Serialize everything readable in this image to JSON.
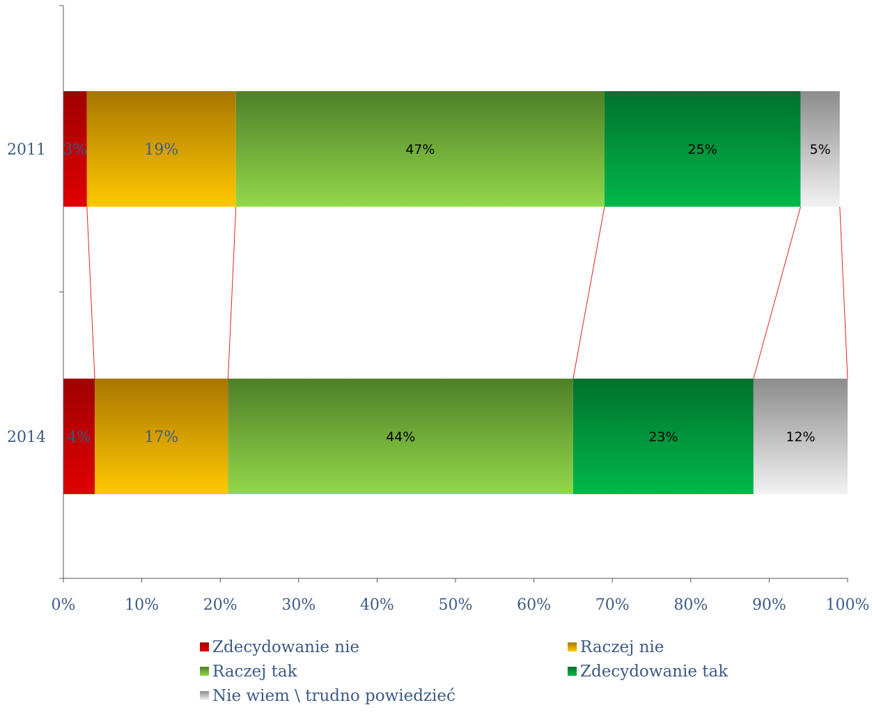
{
  "chart_data": {
    "type": "bar",
    "orientation": "horizontal",
    "stacked": "percent",
    "categories": [
      "2011",
      "2014"
    ],
    "series": [
      {
        "name": "Zdecydowanie nie",
        "values": [
          3,
          4
        ],
        "labels": [
          "3%",
          "4%"
        ],
        "color": "#e00000",
        "color_top": "#a00000",
        "label_style": "serif"
      },
      {
        "name": "Raczej nie",
        "values": [
          19,
          17
        ],
        "labels": [
          "19%",
          "17%"
        ],
        "color": "#ffc800",
        "color_top": "#a87600",
        "label_style": "serif"
      },
      {
        "name": "Raczej tak",
        "values": [
          47,
          44
        ],
        "labels": [
          "47%",
          "44%"
        ],
        "color": "#92d84a",
        "color_top": "#4f7f28",
        "label_style": "sans"
      },
      {
        "name": "Zdecydowanie tak",
        "values": [
          25,
          23
        ],
        "labels": [
          "25%",
          "23%"
        ],
        "color": "#00b84a",
        "color_top": "#00712e",
        "label_style": "sans"
      },
      {
        "name": "Nie wiem \\ trudno powiedzieć",
        "values": [
          5,
          12
        ],
        "labels": [
          "5%",
          "12%"
        ],
        "color": "#f2f2f2",
        "color_top": "#8c8c8c",
        "label_style": "sans"
      }
    ],
    "xlim": [
      0,
      100
    ],
    "x_ticks": [
      "0%",
      "10%",
      "20%",
      "30%",
      "40%",
      "50%",
      "60%",
      "70%",
      "80%",
      "90%",
      "100%"
    ],
    "series_lines": true,
    "series_line_color": "#e02020",
    "grid": false,
    "legend_position": "bottom"
  }
}
